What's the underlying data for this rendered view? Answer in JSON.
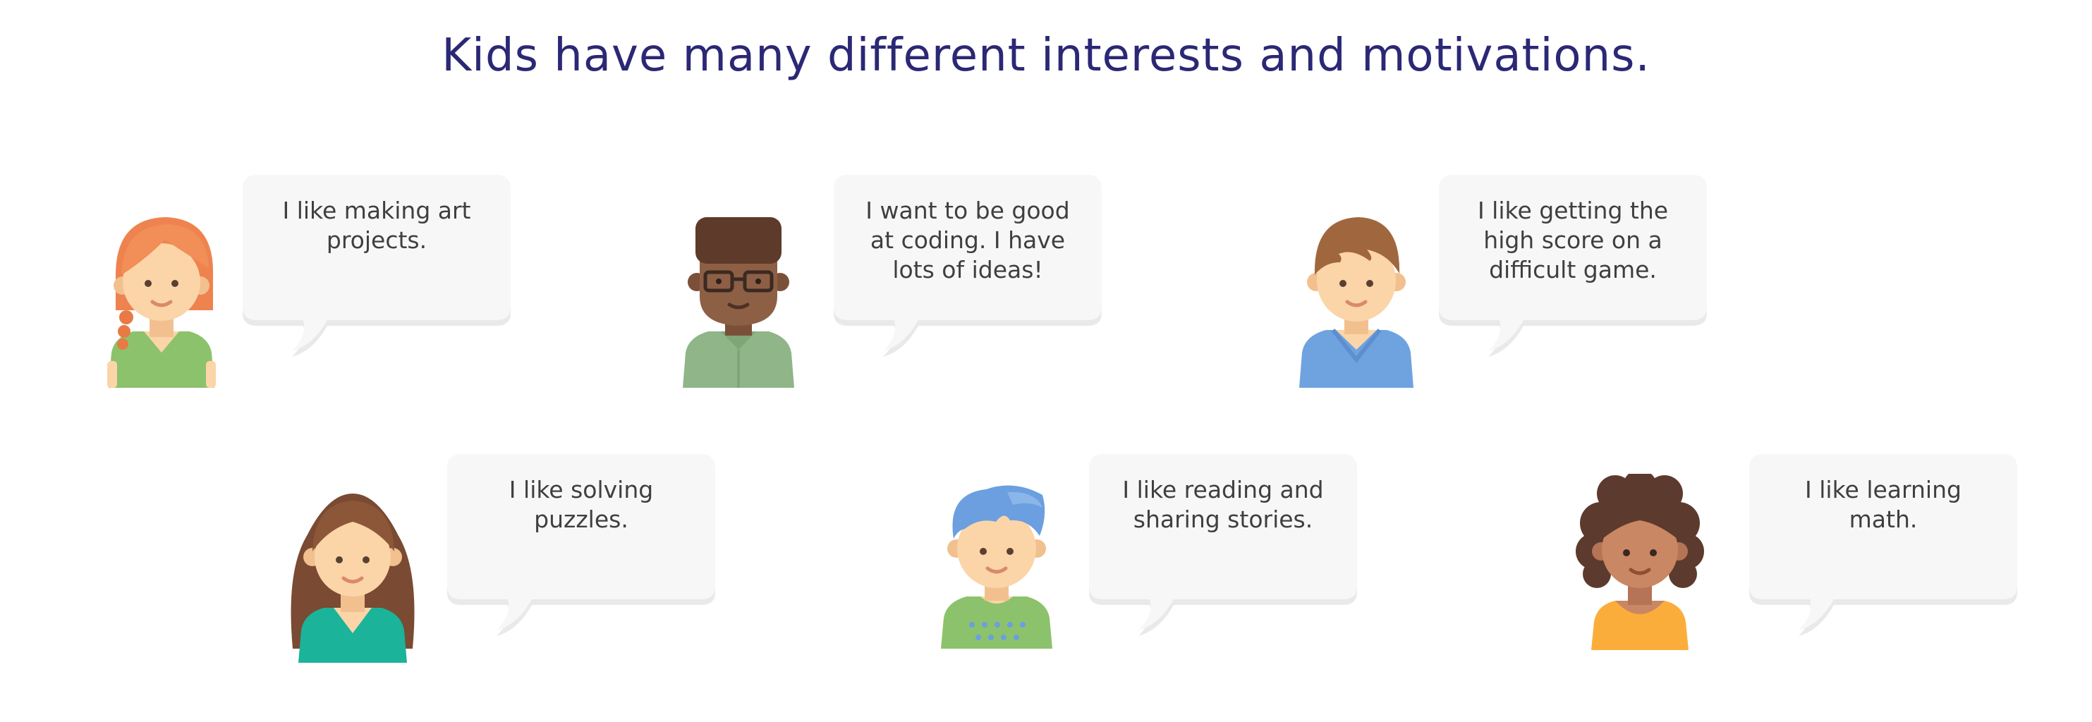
{
  "page": {
    "title": "Kids have many different interests and motivations."
  },
  "colors": {
    "title": "#2b2875",
    "bubble_fill": "#f7f7f7",
    "bubble_shadow": "#e9e9e9",
    "bubble_text": "#3f3f3f"
  },
  "kids": [
    {
      "text": "I like making art\nprojects.",
      "avatar": "red-haired-girl-icon"
    },
    {
      "text": "I want to be good\nat coding. I have\nlots of ideas!",
      "avatar": "boy-with-glasses-icon"
    },
    {
      "text": "I like getting the\nhigh score on a\ndifficult game.",
      "avatar": "brown-haired-boy-icon"
    },
    {
      "text": "I like solving\npuzzles.",
      "avatar": "long-haired-girl-icon"
    },
    {
      "text": "I like reading and\nsharing stories.",
      "avatar": "blue-haired-kid-icon"
    },
    {
      "text": "I like learning\nmath.",
      "avatar": "curly-haired-girl-icon"
    }
  ]
}
